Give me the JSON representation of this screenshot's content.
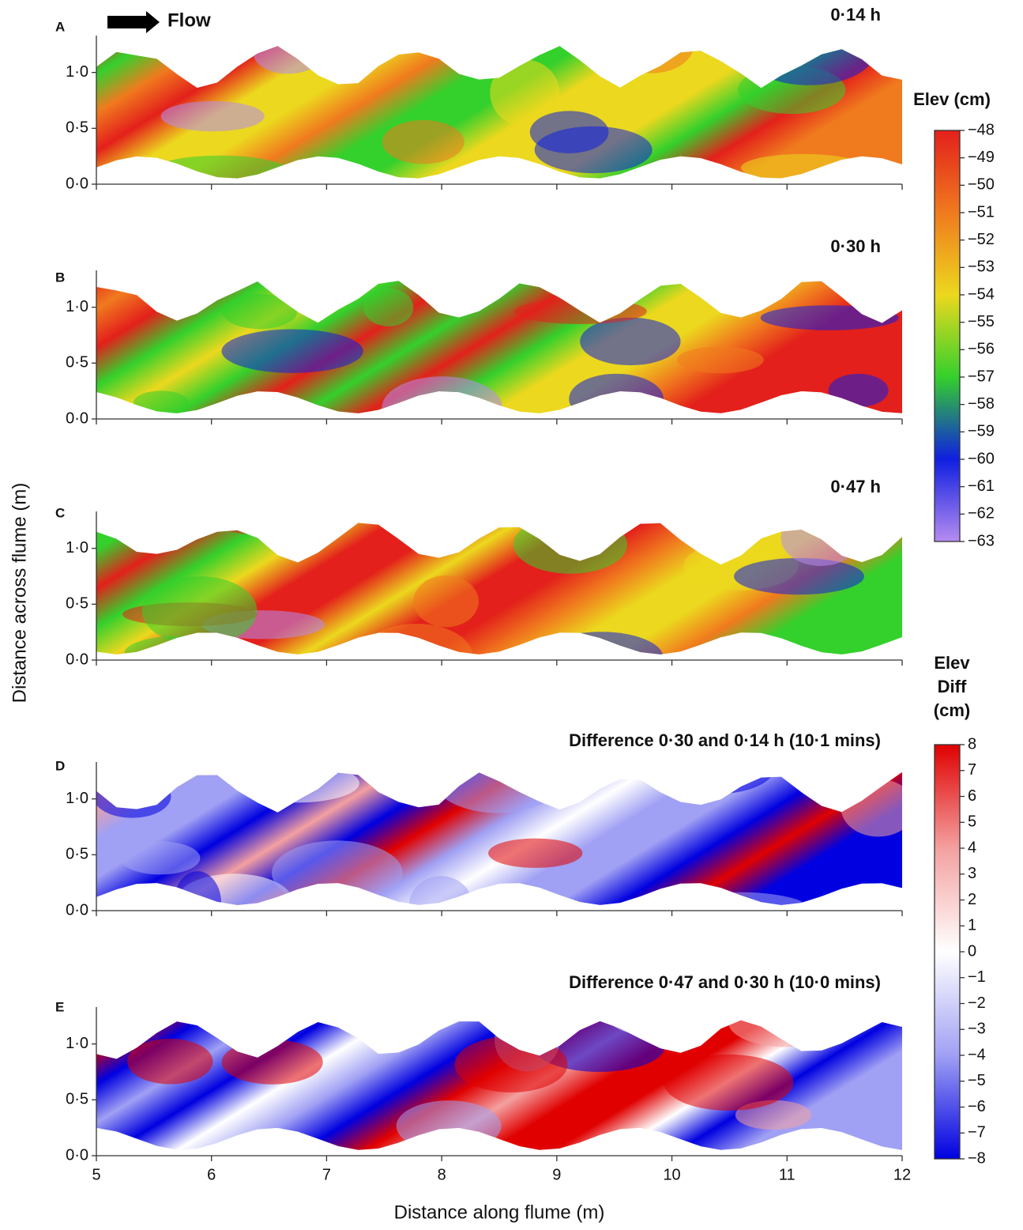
{
  "figure": {
    "flow_label": "Flow",
    "ylabel": "Distance across flume (m)"
  },
  "chart_data": [
    {
      "type": "elevation",
      "panel": "A",
      "title": "0·14 h",
      "xlim": [
        5,
        12
      ],
      "xticks": [
        5,
        6,
        7,
        8,
        9,
        10,
        11,
        12
      ],
      "ylim": [
        0,
        1.33
      ],
      "yticks": [
        {
          "value": 0,
          "label": "0·0"
        },
        {
          "value": 0.5,
          "label": "0·5"
        },
        {
          "value": 1,
          "label": "1·0"
        }
      ]
    },
    {
      "type": "elevation",
      "panel": "B",
      "title": "0·30 h",
      "xlim": [
        5,
        12
      ],
      "xticks": [
        5,
        6,
        7,
        8,
        9,
        10,
        11,
        12
      ],
      "ylim": [
        0,
        1.33
      ],
      "yticks": [
        {
          "value": 0,
          "label": "0·0"
        },
        {
          "value": 0.5,
          "label": "0·5"
        },
        {
          "value": 1,
          "label": "1·0"
        }
      ]
    },
    {
      "type": "elevation",
      "panel": "C",
      "title": "0·47 h",
      "xlim": [
        5,
        12
      ],
      "xticks": [
        5,
        6,
        7,
        8,
        9,
        10,
        11,
        12
      ],
      "ylim": [
        0,
        1.33
      ],
      "yticks": [
        {
          "value": 0,
          "label": "0·0"
        },
        {
          "value": 0.5,
          "label": "0·5"
        },
        {
          "value": 1,
          "label": "1·0"
        }
      ]
    },
    {
      "type": "difference",
      "panel": "D",
      "title": "Difference 0·30 and 0·14 h (10·1 mins)",
      "xlim": [
        5,
        12
      ],
      "xticks": [
        5,
        6,
        7,
        8,
        9,
        10,
        11,
        12
      ],
      "ylim": [
        0,
        1.33
      ],
      "yticks": [
        {
          "value": 0,
          "label": "0·0"
        },
        {
          "value": 0.5,
          "label": "0·5"
        },
        {
          "value": 1,
          "label": "1·0"
        }
      ]
    },
    {
      "type": "difference",
      "panel": "E",
      "title": "Difference 0·47 and 0·30 h (10·0 mins)",
      "xlabel": "Distance along flume (m)",
      "xlim": [
        5,
        12
      ],
      "xticks": [
        5,
        6,
        7,
        8,
        9,
        10,
        11,
        12
      ],
      "ylim": [
        0,
        1.33
      ],
      "yticks": [
        {
          "value": 0,
          "label": "0·0"
        },
        {
          "value": 0.5,
          "label": "0·5"
        },
        {
          "value": 1,
          "label": "1·0"
        }
      ]
    }
  ],
  "colorbars": [
    {
      "title_lines": [
        "Elev (cm)"
      ],
      "lim": [
        -48,
        -63
      ],
      "colors": [
        "#e3201b",
        "#f07a1e",
        "#ecd81e",
        "#34d02c",
        "#0f1fe0",
        "#b68cf0"
      ],
      "ticks": [
        {
          "value": -48,
          "label": "−48"
        },
        {
          "value": -49,
          "label": "−49"
        },
        {
          "value": -50,
          "label": "−50"
        },
        {
          "value": -51,
          "label": "−51"
        },
        {
          "value": -52,
          "label": "−52"
        },
        {
          "value": -53,
          "label": "−53"
        },
        {
          "value": -54,
          "label": "−54"
        },
        {
          "value": -55,
          "label": "−55"
        },
        {
          "value": -56,
          "label": "−56"
        },
        {
          "value": -57,
          "label": "−57"
        },
        {
          "value": -58,
          "label": "−58"
        },
        {
          "value": -59,
          "label": "−59"
        },
        {
          "value": -60,
          "label": "−60"
        },
        {
          "value": -61,
          "label": "−61"
        },
        {
          "value": -62,
          "label": "−62"
        },
        {
          "value": -63,
          "label": "−63"
        }
      ]
    },
    {
      "title_lines": [
        "Elev",
        "Diff",
        "(cm)"
      ],
      "lim": [
        8,
        -8
      ],
      "colors": [
        "#e00000",
        "#f4a0a0",
        "#ffffff",
        "#a0a0f4",
        "#0000e0"
      ],
      "ticks": [
        8,
        7,
        6,
        5,
        4,
        3,
        2,
        1,
        0,
        {
          "value": -1,
          "label": "−1"
        },
        {
          "value": -2,
          "label": "−2"
        },
        {
          "value": -3,
          "label": "−3"
        },
        {
          "value": -4,
          "label": "−4"
        },
        {
          "value": -5,
          "label": "−5"
        },
        {
          "value": -6,
          "label": "−6"
        },
        {
          "value": -7,
          "label": "−7"
        },
        {
          "value": -8,
          "label": "−8"
        }
      ]
    }
  ]
}
